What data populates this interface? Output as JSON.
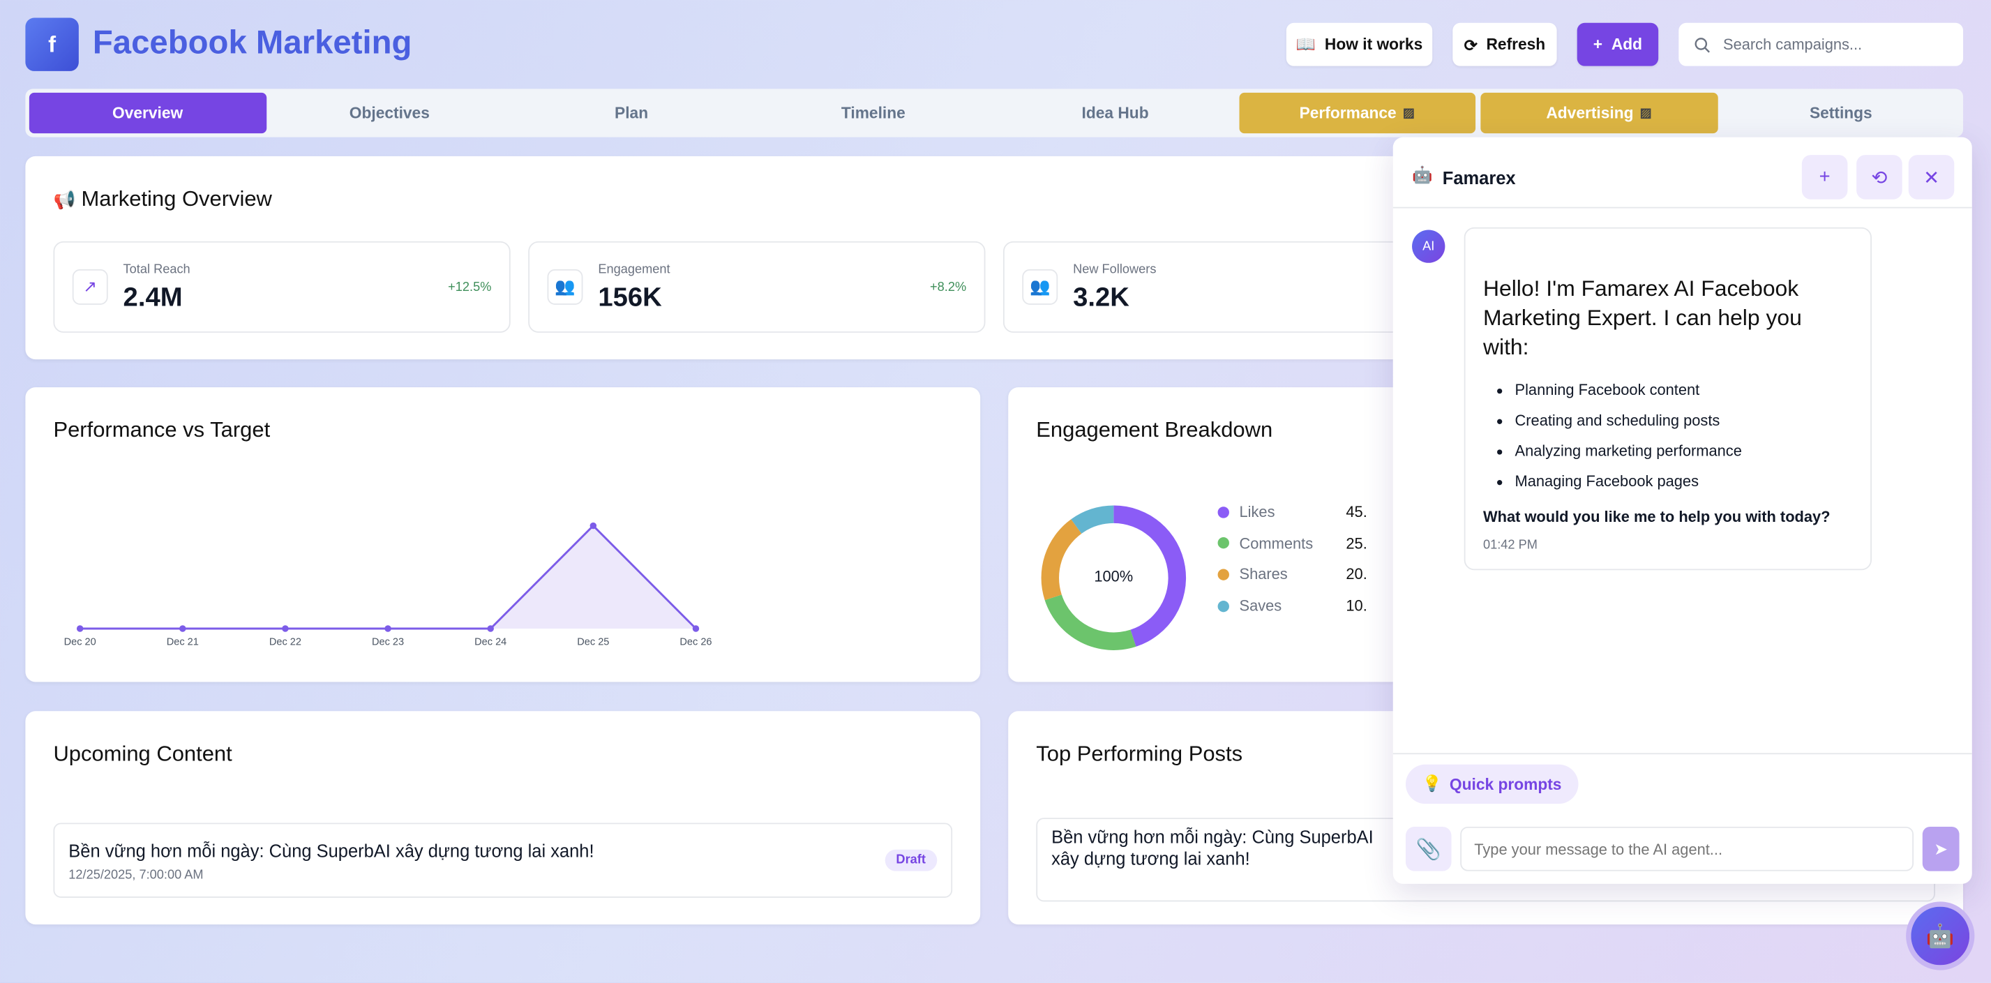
{
  "header": {
    "logo_letter": "f",
    "title": "Facebook Marketing",
    "how_it_works": "How it works",
    "refresh": "Refresh",
    "add": "Add",
    "search_placeholder": "Search campaigns..."
  },
  "tabs": [
    {
      "label": "Overview",
      "state": "active"
    },
    {
      "label": "Objectives"
    },
    {
      "label": "Plan"
    },
    {
      "label": "Timeline"
    },
    {
      "label": "Idea Hub"
    },
    {
      "label": "Performance",
      "badge": "construction"
    },
    {
      "label": "Advertising",
      "badge": "construction"
    },
    {
      "label": "Settings"
    }
  ],
  "overview": {
    "title": "Marketing Overview",
    "stats": [
      {
        "label": "Total Reach",
        "value": "2.4M",
        "change": "+12.5%",
        "icon": "trending-up-icon"
      },
      {
        "label": "Engagement",
        "value": "156K",
        "change": "+8.2%",
        "icon": "users-icon"
      },
      {
        "label": "New Followers",
        "value": "3.2K",
        "icon": "users-icon"
      }
    ]
  },
  "chart_data": [
    {
      "type": "line",
      "title": "Performance vs Target",
      "categories": [
        "Dec 20",
        "Dec 21",
        "Dec 22",
        "Dec 23",
        "Dec 24",
        "Dec 25",
        "Dec 26"
      ],
      "series": [
        {
          "values": [
            0,
            0,
            0,
            0,
            0,
            1,
            0
          ],
          "color": "#7c5ce8"
        }
      ],
      "area": true,
      "grid": false
    },
    {
      "type": "pie",
      "title": "Engagement Breakdown",
      "donut": true,
      "center_label": "100%",
      "categories": [
        "Likes",
        "Comments",
        "Shares",
        "Saves"
      ],
      "values": [
        45,
        25,
        20,
        10
      ],
      "value_labels": [
        "45.",
        "25.",
        "20.",
        "10."
      ],
      "colors": [
        "#8b5cf6",
        "#6cc46c",
        "#e3a23f",
        "#63b5d0"
      ],
      "legend": "right"
    }
  ],
  "upcoming": {
    "title": "Upcoming Content",
    "items": [
      {
        "title": "Bền vững hơn mỗi ngày: Cùng SuperbAI xây dựng tương lai xanh!",
        "date": "12/25/2025, 7:00:00 AM",
        "status": "Draft"
      }
    ]
  },
  "top_posts": {
    "title": "Top Performing Posts",
    "items": [
      {
        "title": "Bền vững hơn mỗi ngày: Cùng SuperbAI xây dựng tương lai xanh!"
      }
    ]
  },
  "chat": {
    "name": "Famarex",
    "avatar": "AI",
    "greeting": "Hello! I'm Famarex AI Facebook Marketing Expert. I can help you with:",
    "bullets": [
      "Planning Facebook content",
      "Creating and scheduling posts",
      "Analyzing marketing performance",
      "Managing Facebook pages"
    ],
    "question": "What would you like me to help you with today?",
    "time": "01:42 PM",
    "quick_prompts": "Quick prompts",
    "input_placeholder": "Type your message to the AI agent..."
  }
}
